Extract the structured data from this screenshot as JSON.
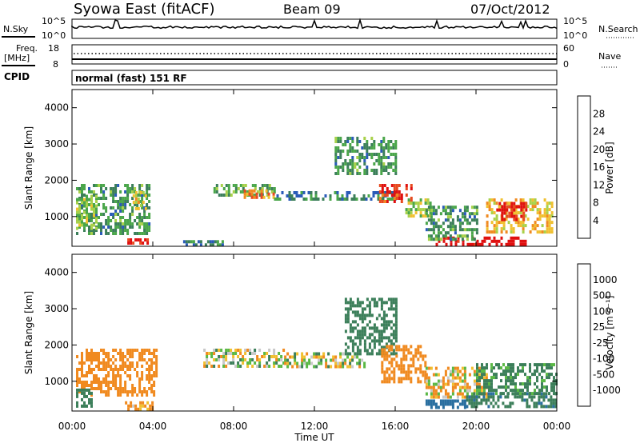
{
  "header": {
    "station": "Syowa East (fitACF)",
    "beam": "Beam 09",
    "date": "07/Oct/2012"
  },
  "summary": {
    "nsky_label": "N.Sky",
    "nsky_ticks": [
      "10^5",
      "10^0"
    ],
    "nsearch_label": "N.Search",
    "nsearch_ticks": [
      "10^5",
      "10^0"
    ],
    "freq_label": "Freq.",
    "freq_unit": "[MHz]",
    "freq_ticks": [
      "18",
      "8"
    ],
    "nave_label": "Nave",
    "nave_ticks": [
      "60",
      "0"
    ],
    "cpid_label": "CPID",
    "cpid_text": "normal (fast) 151 RF"
  },
  "colors": {
    "power": [
      "#1f1fe0",
      "#2a5bb8",
      "#3c7f5a",
      "#4aa64a",
      "#a8d14a",
      "#f0c030",
      "#f08a20",
      "#e84a20",
      "#e01010"
    ],
    "velocity": [
      "#1f3fb0",
      "#2a6fa0",
      "#3c7f5a",
      "#5ab845",
      "#c8c8c8",
      "#f0c030",
      "#f08a20",
      "#e84a20",
      "#e01010"
    ]
  },
  "chart_data": [
    {
      "type": "heatmap",
      "name": "power",
      "ylabel": "Slant Range [km]",
      "xlabel": "Time UT",
      "x_ticks": [
        "00:00",
        "04:00",
        "08:00",
        "12:00",
        "16:00",
        "20:00",
        "00:00"
      ],
      "y_ticks": [
        "4000",
        "3000",
        "2000",
        "1000"
      ],
      "xlim_hours": [
        0,
        24
      ],
      "ylim_km": [
        180,
        4500
      ],
      "colorbar_label": "Power [dB]",
      "colorbar_ticks": [
        "28",
        "24",
        "20",
        "16",
        "12",
        "8",
        "4"
      ],
      "regions": [
        {
          "t": [
            0.2,
            3.8
          ],
          "r": [
            500,
            1900
          ],
          "value": 10
        },
        {
          "t": [
            2.5,
            3.8
          ],
          "r": [
            250,
            400
          ],
          "value": 30
        },
        {
          "t": [
            0.2,
            1.2
          ],
          "r": [
            700,
            1600
          ],
          "value": 14
        },
        {
          "t": [
            3.0,
            3.6
          ],
          "r": [
            1200,
            1700
          ],
          "value": 18
        },
        {
          "t": [
            7.0,
            10.0
          ],
          "r": [
            1600,
            1900
          ],
          "value": 12
        },
        {
          "t": [
            8.5,
            10.0
          ],
          "r": [
            1550,
            1750
          ],
          "value": 22
        },
        {
          "t": [
            5.5,
            7.5
          ],
          "r": [
            250,
            350
          ],
          "value": 8
        },
        {
          "t": [
            10.0,
            16.0
          ],
          "r": [
            1450,
            1700
          ],
          "value": 8
        },
        {
          "t": [
            13.0,
            16.0
          ],
          "r": [
            2200,
            3200
          ],
          "value": 10
        },
        {
          "t": [
            15.2,
            16.8
          ],
          "r": [
            1400,
            1900
          ],
          "value": 26
        },
        {
          "t": [
            16.5,
            17.8
          ],
          "r": [
            1000,
            1500
          ],
          "value": 14
        },
        {
          "t": [
            18.0,
            22.5
          ],
          "r": [
            250,
            450
          ],
          "value": 30
        },
        {
          "t": [
            20.5,
            23.8
          ],
          "r": [
            600,
            1500
          ],
          "value": 18
        },
        {
          "t": [
            21.0,
            22.5
          ],
          "r": [
            900,
            1400
          ],
          "value": 28
        },
        {
          "t": [
            17.5,
            20.0
          ],
          "r": [
            400,
            1300
          ],
          "value": 10
        }
      ]
    },
    {
      "type": "heatmap",
      "name": "velocity",
      "ylabel": "Slant Range [km]",
      "xlabel": "Time UT",
      "x_ticks": [
        "00:00",
        "04:00",
        "08:00",
        "12:00",
        "16:00",
        "20:00",
        "00:00"
      ],
      "y_ticks": [
        "4000",
        "3000",
        "2000",
        "1000"
      ],
      "xlim_hours": [
        0,
        24
      ],
      "ylim_km": [
        180,
        4500
      ],
      "colorbar_label": "Velocity [m s⁻¹]",
      "colorbar_ticks": [
        "1000",
        "500",
        "100",
        "25",
        "-25",
        "-100",
        "-500",
        "-1000"
      ],
      "regions": [
        {
          "t": [
            0.2,
            4.2
          ],
          "r": [
            600,
            1900
          ],
          "value": -300
        },
        {
          "t": [
            0.2,
            1.0
          ],
          "r": [
            300,
            800
          ],
          "value": 300
        },
        {
          "t": [
            2.5,
            4.0
          ],
          "r": [
            250,
            450
          ],
          "value": -80
        },
        {
          "t": [
            6.5,
            10.5
          ],
          "r": [
            1400,
            1900
          ],
          "value": 0
        },
        {
          "t": [
            10.5,
            14.5
          ],
          "r": [
            1400,
            1800
          ],
          "value": 0
        },
        {
          "t": [
            13.5,
            16.0
          ],
          "r": [
            1800,
            3300
          ],
          "value": 300
        },
        {
          "t": [
            15.3,
            17.5
          ],
          "r": [
            1000,
            2000
          ],
          "value": -300
        },
        {
          "t": [
            17.5,
            20.5
          ],
          "r": [
            600,
            1400
          ],
          "value": -80
        },
        {
          "t": [
            19.5,
            24.0
          ],
          "r": [
            300,
            700
          ],
          "value": 400
        },
        {
          "t": [
            20.0,
            24.0
          ],
          "r": [
            700,
            1500
          ],
          "value": 200
        },
        {
          "t": [
            17.5,
            19.5
          ],
          "r": [
            250,
            500
          ],
          "value": 800
        }
      ]
    }
  ]
}
